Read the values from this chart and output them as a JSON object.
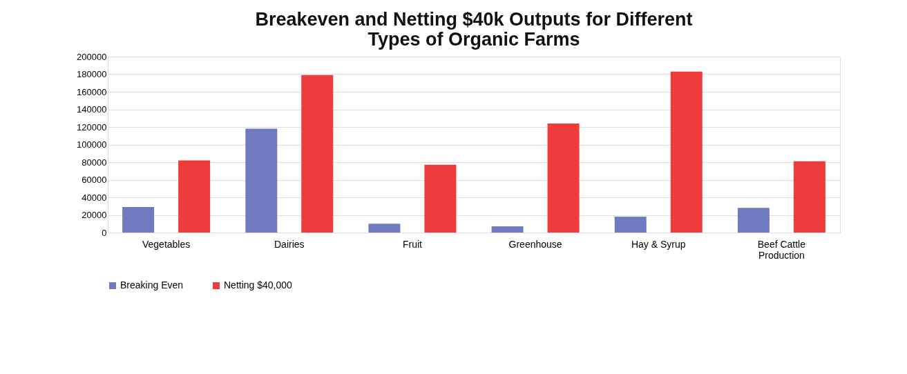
{
  "chart_data": {
    "type": "bar",
    "title": "Breakeven and Netting $40k Outputs for Different Types of Organic Farms",
    "categories": [
      "Vegetables",
      "Dairies",
      "Fruit",
      "Greenhouse",
      "Hay & Syrup",
      "Beef Cattle Production"
    ],
    "series": [
      {
        "name": "Breaking Even",
        "color": "#6f7ac0",
        "values": [
          29000,
          118000,
          10000,
          7000,
          18000,
          28000
        ]
      },
      {
        "name": "Netting $40,000",
        "color": "#ee3b3b",
        "values": [
          82000,
          179000,
          77000,
          124000,
          183000,
          81000
        ]
      }
    ],
    "ylim": [
      0,
      200000
    ],
    "yticks": [
      0,
      20000,
      40000,
      60000,
      80000,
      100000,
      120000,
      140000,
      160000,
      180000,
      200000
    ],
    "grid": "y",
    "legend": "bottom"
  }
}
